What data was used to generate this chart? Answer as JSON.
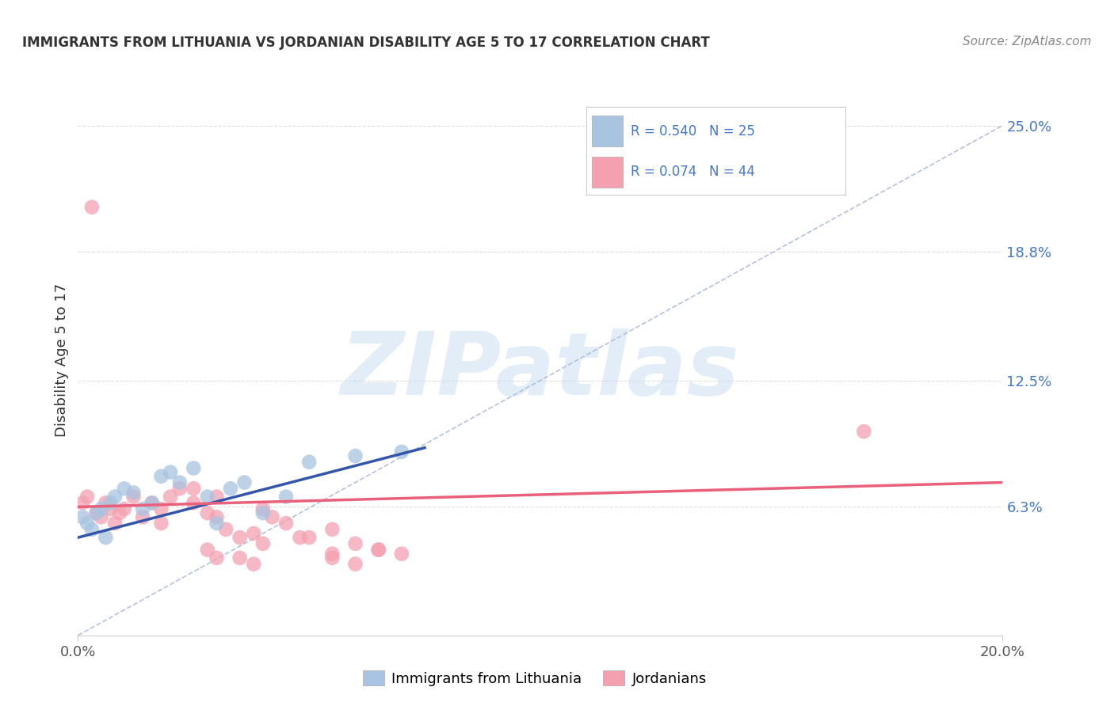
{
  "title": "IMMIGRANTS FROM LITHUANIA VS JORDANIAN DISABILITY AGE 5 TO 17 CORRELATION CHART",
  "source": "Source: ZipAtlas.com",
  "ylabel": "Disability Age 5 to 17",
  "xlim": [
    0,
    0.2
  ],
  "ylim": [
    0,
    0.27
  ],
  "xtick_labels": [
    "0.0%",
    "20.0%"
  ],
  "xtick_positions": [
    0.0,
    0.2
  ],
  "ytick_right_labels": [
    "6.3%",
    "12.5%",
    "18.8%",
    "25.0%"
  ],
  "ytick_right_positions": [
    0.063,
    0.125,
    0.188,
    0.25
  ],
  "blue_color": "#A8C4E0",
  "pink_color": "#F4A0B0",
  "blue_line_color": "#3355AA",
  "pink_line_color": "#E8607A",
  "diag_color": "#AABBDD",
  "watermark_color": "#C8DCF0",
  "background_color": "#FFFFFF",
  "grid_color": "#DDDDDD",
  "blue_scatter_x": [
    0.001,
    0.002,
    0.003,
    0.004,
    0.005,
    0.006,
    0.007,
    0.008,
    0.01,
    0.012,
    0.014,
    0.016,
    0.018,
    0.02,
    0.022,
    0.025,
    0.028,
    0.03,
    0.033,
    0.036,
    0.04,
    0.045,
    0.05,
    0.06,
    0.07
  ],
  "blue_scatter_y": [
    0.058,
    0.055,
    0.052,
    0.06,
    0.062,
    0.048,
    0.065,
    0.068,
    0.072,
    0.07,
    0.062,
    0.065,
    0.078,
    0.08,
    0.075,
    0.082,
    0.068,
    0.055,
    0.072,
    0.075,
    0.06,
    0.068,
    0.085,
    0.088,
    0.09
  ],
  "pink_scatter_x": [
    0.001,
    0.002,
    0.003,
    0.004,
    0.005,
    0.006,
    0.007,
    0.008,
    0.009,
    0.01,
    0.012,
    0.014,
    0.016,
    0.018,
    0.02,
    0.022,
    0.025,
    0.028,
    0.03,
    0.032,
    0.035,
    0.038,
    0.04,
    0.042,
    0.045,
    0.05,
    0.055,
    0.06,
    0.065,
    0.07,
    0.03,
    0.025,
    0.018,
    0.04,
    0.055,
    0.048,
    0.035,
    0.06,
    0.065,
    0.055,
    0.17,
    0.028,
    0.038,
    0.03
  ],
  "pink_scatter_y": [
    0.065,
    0.068,
    0.21,
    0.06,
    0.058,
    0.065,
    0.062,
    0.055,
    0.06,
    0.062,
    0.068,
    0.058,
    0.065,
    0.062,
    0.068,
    0.072,
    0.065,
    0.06,
    0.058,
    0.052,
    0.048,
    0.05,
    0.062,
    0.058,
    0.055,
    0.048,
    0.052,
    0.045,
    0.042,
    0.04,
    0.068,
    0.072,
    0.055,
    0.045,
    0.04,
    0.048,
    0.038,
    0.035,
    0.042,
    0.038,
    0.1,
    0.042,
    0.035,
    0.038
  ]
}
